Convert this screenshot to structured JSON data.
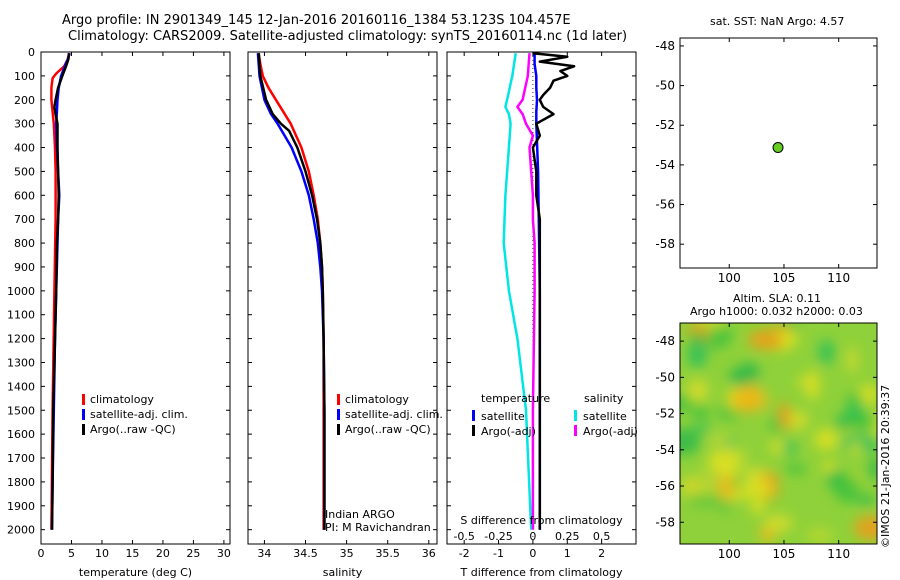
{
  "header": {
    "line1": "Argo profile: IN 2901349_145 12-Jan-2016 20160116_1384 53.123S 104.457E",
    "line2": "Climatology: CARS2009. Satellite-adjusted climatology: synTS_20160114.nc (1d later)"
  },
  "sst_title": "sat. SST: NaN Argo: 4.57",
  "sla_title1": "Altim. SLA: 0.11",
  "sla_title2": "Argo h1000: 0.032 h2000: 0.03",
  "timestamp": "©IMOS 21-Jan-2016 20:39:37",
  "chart_data": [
    {
      "type": "line",
      "xlabel": "temperature (deg C)",
      "xlim": [
        0,
        31
      ],
      "ylim": [
        2060,
        0
      ],
      "xticks": [
        0,
        5,
        10,
        15,
        20,
        25,
        30
      ],
      "yticks": [
        0,
        100,
        200,
        300,
        400,
        500,
        600,
        700,
        800,
        900,
        1000,
        1100,
        1200,
        1300,
        1400,
        1500,
        1600,
        1700,
        1800,
        1900,
        2000
      ],
      "legend": [
        "climatology",
        "satellite-adj. clim.",
        "Argo(..raw -QC)"
      ],
      "series": [
        {
          "name": "climatology",
          "color": "#ff0000",
          "depth": [
            5,
            30,
            60,
            90,
            110,
            150,
            200,
            250,
            300,
            400,
            500,
            700,
            1000,
            1500,
            2000
          ],
          "values": [
            4.6,
            4.4,
            3.8,
            2.5,
            1.9,
            1.7,
            1.7,
            1.9,
            2.1,
            2.3,
            2.4,
            2.4,
            2.2,
            1.9,
            1.7
          ]
        },
        {
          "name": "satellite-adj. clim.",
          "color": "#0000ff",
          "depth": [
            5,
            30,
            60,
            100,
            150,
            200,
            250,
            300,
            400,
            500,
            600,
            700,
            800,
            1000,
            1200,
            1500,
            1800,
            2000
          ],
          "values": [
            4.7,
            4.4,
            3.9,
            3.3,
            2.9,
            2.7,
            2.6,
            2.5,
            2.6,
            2.8,
            3.0,
            2.8,
            2.7,
            2.5,
            2.3,
            2.1,
            1.9,
            1.8
          ]
        },
        {
          "name": "Argo(..raw -QC)",
          "color": "#000000",
          "depth": [
            5,
            30,
            60,
            100,
            150,
            200,
            230,
            260,
            300,
            400,
            500,
            600,
            700,
            800,
            1000,
            1200,
            1500,
            1800,
            2000
          ],
          "values": [
            4.6,
            4.5,
            4.1,
            3.5,
            2.8,
            2.4,
            2.2,
            2.4,
            2.7,
            2.7,
            2.8,
            2.9,
            2.8,
            2.6,
            2.5,
            2.3,
            2.0,
            1.9,
            1.8
          ]
        }
      ]
    },
    {
      "type": "line",
      "xlabel": "salinity",
      "xlim": [
        33.8,
        36.1
      ],
      "ylim": [
        2060,
        0
      ],
      "xticks": [
        34,
        34.5,
        35,
        35.5,
        36
      ],
      "legend": [
        "climatology",
        "satellite-adj. clim.",
        "Argo(..raw -QC)"
      ],
      "annotation": [
        "Indian ARGO",
        "PI: M Ravichandran"
      ],
      "series": [
        {
          "name": "climatology",
          "color": "#ff0000",
          "depth": [
            5,
            50,
            100,
            150,
            200,
            300,
            400,
            500,
            600,
            700,
            800,
            900,
            1000,
            1200,
            1500,
            2000
          ],
          "values": [
            33.93,
            33.95,
            33.98,
            34.05,
            34.14,
            34.32,
            34.45,
            34.54,
            34.6,
            34.65,
            34.68,
            34.7,
            34.71,
            34.72,
            34.72,
            34.72
          ]
        },
        {
          "name": "satellite-adj. clim.",
          "color": "#0000ff",
          "depth": [
            5,
            50,
            100,
            200,
            260,
            300,
            400,
            500,
            600,
            700,
            800,
            900,
            1000,
            1200,
            1500,
            2000
          ],
          "values": [
            33.92,
            33.93,
            33.94,
            34.0,
            34.08,
            34.16,
            34.33,
            34.45,
            34.54,
            34.6,
            34.65,
            34.68,
            34.7,
            34.72,
            34.73,
            34.73
          ]
        },
        {
          "name": "Argo(..raw -QC)",
          "color": "#000000",
          "depth": [
            5,
            50,
            100,
            200,
            260,
            300,
            330,
            400,
            500,
            600,
            700,
            800,
            900,
            1000,
            1200,
            1500,
            2000
          ],
          "values": [
            33.93,
            33.94,
            33.95,
            34.02,
            34.1,
            34.2,
            34.3,
            34.4,
            34.5,
            34.58,
            34.64,
            34.68,
            34.7,
            34.71,
            34.72,
            34.73,
            34.73
          ]
        }
      ]
    },
    {
      "type": "line",
      "xlabel": "T difference from climatology",
      "xlabel2": "S difference from climatology",
      "xlim": [
        -2.5,
        3.0
      ],
      "xticks": [
        -2,
        -1,
        0,
        1,
        2
      ],
      "xticks2": [
        "-0.5",
        "-0.25",
        "0",
        "0.25",
        "0.5"
      ],
      "ylim": [
        2060,
        0
      ],
      "legend_titles": [
        "temperature",
        "salinity"
      ],
      "legend": [
        "satellite",
        "Argo(-adj)",
        "satellite",
        "Argo(-adj)"
      ],
      "series": [
        {
          "name": "temperature satellite",
          "color": "#0000ff",
          "depth": [
            5,
            50,
            100,
            150,
            200,
            250,
            300,
            500,
            1000,
            1500,
            2000
          ],
          "values": [
            0.05,
            0.05,
            0.1,
            0.1,
            0.12,
            0.1,
            0.1,
            0.15,
            0.2,
            0.2,
            0.2
          ]
        },
        {
          "name": "temperature Argo(-adj)",
          "color": "#000000",
          "depth": [
            5,
            20,
            40,
            60,
            80,
            100,
            120,
            150,
            180,
            200,
            230,
            260,
            300,
            350,
            400,
            500,
            600,
            700,
            800,
            1000,
            1500,
            2000
          ],
          "values": [
            0.0,
            1.0,
            0.2,
            1.2,
            0.8,
            1.0,
            0.6,
            0.5,
            0.3,
            0.2,
            0.3,
            0.6,
            0.1,
            0.2,
            0.0,
            0.1,
            0.1,
            0.2,
            0.2,
            0.2,
            0.2,
            0.2
          ]
        },
        {
          "name": "salinity satellite",
          "color": "#00e5e5",
          "depth": [
            5,
            100,
            200,
            230,
            260,
            300,
            400,
            600,
            800,
            1000,
            1200,
            1500,
            2000
          ],
          "values": [
            -0.5,
            -0.6,
            -0.75,
            -0.8,
            -0.7,
            -0.65,
            -0.7,
            -0.8,
            -0.85,
            -0.7,
            -0.45,
            -0.2,
            -0.05
          ]
        },
        {
          "name": "salinity Argo(-adj)",
          "color": "#ff00ff",
          "depth": [
            5,
            100,
            200,
            230,
            260,
            300,
            350,
            400,
            500,
            600,
            700,
            800,
            1000,
            1500,
            2000
          ],
          "values": [
            -0.1,
            -0.15,
            -0.3,
            -0.45,
            -0.3,
            -0.2,
            0.0,
            -0.1,
            -0.05,
            0.0,
            0.0,
            0.05,
            0.05,
            0.0,
            0.0
          ]
        }
      ]
    },
    {
      "type": "scatter",
      "title": "sat. SST: NaN Argo: 4.57",
      "xlim": [
        95.5,
        113.5
      ],
      "ylim": [
        -59.2,
        -47.6
      ],
      "xticks": [
        100,
        105,
        110
      ],
      "yticks": [
        -48,
        -50,
        -52,
        -54,
        -56,
        -58
      ],
      "points": [
        {
          "x": 104.457,
          "y": -53.123,
          "color": "#66cc22"
        }
      ]
    },
    {
      "type": "heatmap",
      "title": "Altim. SLA: 0.11",
      "subtitle": "Argo h1000: 0.032 h2000: 0.03",
      "xlim": [
        95.5,
        113.5
      ],
      "ylim": [
        -59.2,
        -47.0
      ],
      "xticks": [
        100,
        105,
        110
      ],
      "yticks": [
        -48,
        -50,
        -52,
        -54,
        -56,
        -58
      ]
    }
  ]
}
